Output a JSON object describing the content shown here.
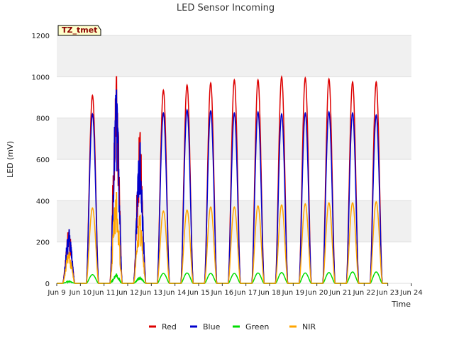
{
  "chart_data": {
    "type": "line",
    "title": "LED Sensor Incoming",
    "xlabel": "Time",
    "ylabel": "LED (mV)",
    "ylim": [
      0,
      1200
    ],
    "yticks": [
      0,
      200,
      400,
      600,
      800,
      1000,
      1200
    ],
    "xlim": [
      9,
      24
    ],
    "xticks": [
      9,
      10,
      11,
      12,
      13,
      14,
      15,
      16,
      17,
      18,
      19,
      20,
      21,
      22,
      23,
      24
    ],
    "xtick_labels": [
      "Jun 9",
      "Jun 10",
      "Jun 11",
      "Jun 12",
      "Jun 13",
      "Jun 14",
      "Jun 15",
      "Jun 16",
      "Jun 17",
      "Jun 18",
      "Jun 19",
      "Jun 20",
      "Jun 21",
      "Jun 22",
      "Jun 23",
      "Jun 24"
    ],
    "annotation": "TZ_tmet",
    "legend_position": "bottom-center",
    "series": [
      {
        "name": "Red",
        "color": "#dd0000",
        "daily_peaks": [
          260,
          910,
          1000,
          730,
          935,
          960,
          970,
          985,
          985,
          1000,
          995,
          990,
          975,
          975
        ]
      },
      {
        "name": "Blue",
        "color": "#0000cc",
        "daily_peaks": [
          260,
          820,
          935,
          680,
          825,
          840,
          835,
          825,
          830,
          820,
          825,
          830,
          825,
          815
        ]
      },
      {
        "name": "Green",
        "color": "#00dd00",
        "daily_peaks": [
          12,
          42,
          45,
          30,
          48,
          50,
          48,
          48,
          50,
          52,
          50,
          52,
          55,
          55
        ]
      },
      {
        "name": "NIR",
        "color": "#ffa500",
        "daily_peaks": [
          150,
          365,
          440,
          330,
          350,
          355,
          370,
          370,
          375,
          380,
          385,
          390,
          390,
          395
        ]
      }
    ]
  }
}
